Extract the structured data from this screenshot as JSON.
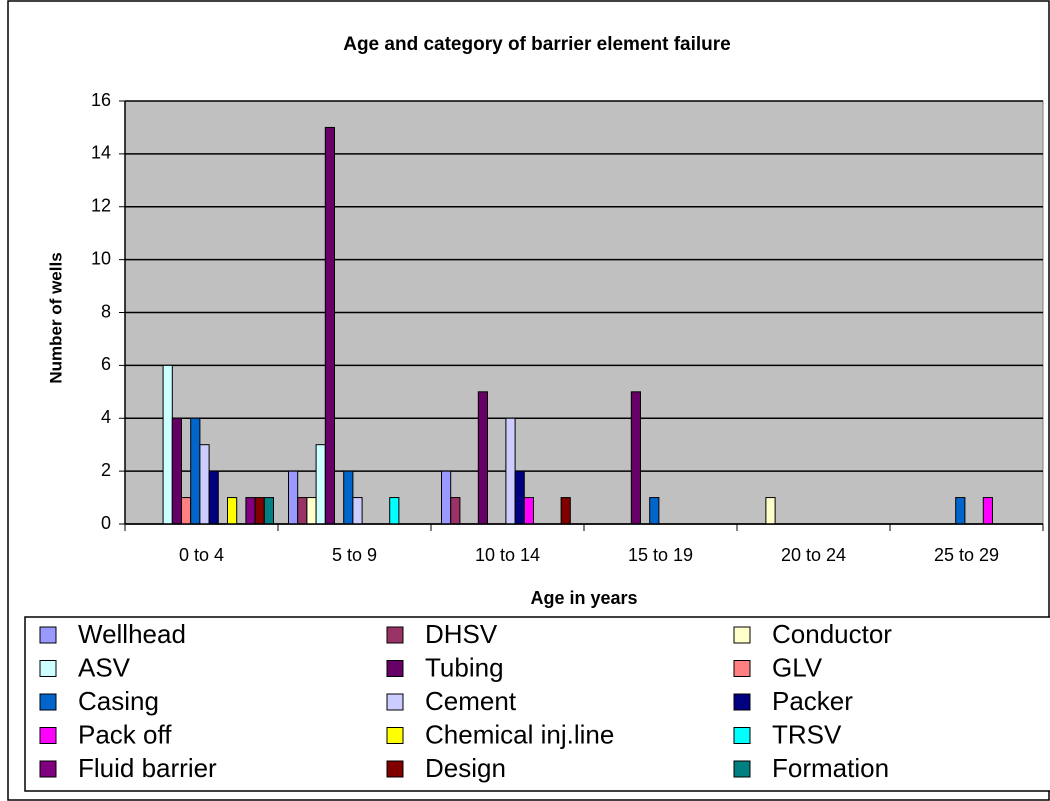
{
  "chart_data": {
    "type": "bar",
    "title": "Age and category of barrier element failure",
    "x_label": "Age in years",
    "y_label": "Number of wells",
    "categories": [
      "0 to 4",
      "5 to 9",
      "10 to 14",
      "15 to 19",
      "20 to 24",
      "25 to 29"
    ],
    "ylim": [
      0,
      16
    ],
    "yticks": [
      0,
      2,
      4,
      6,
      8,
      10,
      12,
      14,
      16
    ],
    "grid": true,
    "series": [
      {
        "name": "Wellhead",
        "color": "#9999ff",
        "values": [
          0,
          2,
          2,
          0,
          0,
          0
        ]
      },
      {
        "name": "DHSV",
        "color": "#993366",
        "values": [
          0,
          1,
          1,
          0,
          0,
          0
        ]
      },
      {
        "name": "Conductor",
        "color": "#ffffcc",
        "values": [
          0,
          1,
          0,
          0,
          1,
          0
        ]
      },
      {
        "name": "ASV",
        "color": "#ccffff",
        "values": [
          6,
          3,
          0,
          0,
          0,
          0
        ]
      },
      {
        "name": "Tubing",
        "color": "#660066",
        "values": [
          4,
          15,
          5,
          5,
          0,
          0
        ]
      },
      {
        "name": "GLV",
        "color": "#ff8080",
        "values": [
          1,
          0,
          0,
          0,
          0,
          0
        ]
      },
      {
        "name": "Casing",
        "color": "#0066cc",
        "values": [
          4,
          2,
          0,
          1,
          0,
          1
        ]
      },
      {
        "name": "Cement",
        "color": "#ccccff",
        "values": [
          3,
          1,
          4,
          0,
          0,
          0
        ]
      },
      {
        "name": "Packer",
        "color": "#000080",
        "values": [
          2,
          0,
          2,
          0,
          0,
          0
        ]
      },
      {
        "name": "Pack off",
        "color": "#ff00ff",
        "values": [
          0,
          0,
          1,
          0,
          0,
          1
        ]
      },
      {
        "name": "Chemical inj.line",
        "color": "#ffff00",
        "values": [
          1,
          0,
          0,
          0,
          0,
          0
        ]
      },
      {
        "name": "TRSV",
        "color": "#00ffff",
        "values": [
          0,
          1,
          0,
          0,
          0,
          0
        ]
      },
      {
        "name": "Fluid barrier",
        "color": "#800080",
        "values": [
          1,
          0,
          0,
          0,
          0,
          0
        ]
      },
      {
        "name": "Design",
        "color": "#800000",
        "values": [
          1,
          0,
          1,
          0,
          0,
          0
        ]
      },
      {
        "name": "Formation",
        "color": "#008080",
        "values": [
          1,
          0,
          0,
          0,
          0,
          0
        ]
      }
    ]
  }
}
